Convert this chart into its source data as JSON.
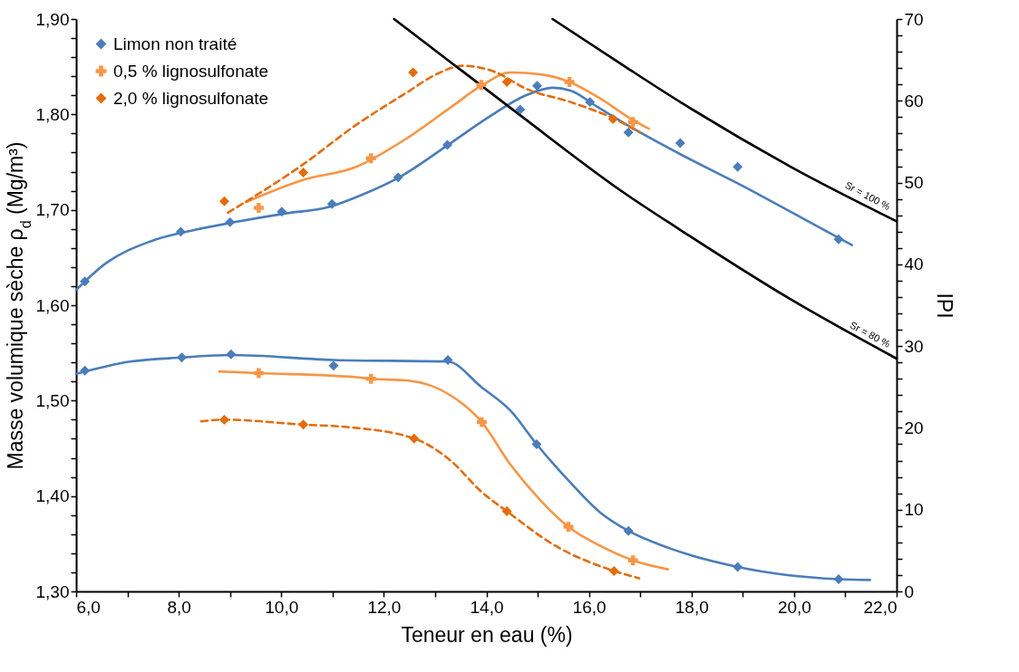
{
  "chart_data": {
    "type": "line",
    "xlabel": "Teneur en eau (%)",
    "ylabel": "Masse volumique sèche ρ$_{d}$ (Mg/m³)",
    "y2label": "IPI",
    "xlim": [
      6,
      22
    ],
    "xticks": [
      {
        "value": 6,
        "label": "6,0"
      },
      {
        "value": 7,
        "label": null
      },
      {
        "value": 8,
        "label": "8,0"
      },
      {
        "value": 9,
        "label": null
      },
      {
        "value": 10,
        "label": "10,0"
      },
      {
        "value": 11,
        "label": null
      },
      {
        "value": 12,
        "label": "12,0"
      },
      {
        "value": 13,
        "label": null
      },
      {
        "value": 14,
        "label": "14,0"
      },
      {
        "value": 15,
        "label": null
      },
      {
        "value": 16,
        "label": "16,0"
      },
      {
        "value": 17,
        "label": null
      },
      {
        "value": 18,
        "label": "18,0"
      },
      {
        "value": 19,
        "label": null
      },
      {
        "value": 20,
        "label": "20,0"
      },
      {
        "value": 21,
        "label": null
      },
      {
        "value": 22,
        "label": "22,0"
      }
    ],
    "ylim": [
      1.3,
      1.9
    ],
    "yticks": [
      {
        "value": 1.3,
        "label": "1,30"
      },
      {
        "value": 1.32,
        "label": null
      },
      {
        "value": 1.34,
        "label": null
      },
      {
        "value": 1.36,
        "label": null
      },
      {
        "value": 1.38,
        "label": null
      },
      {
        "value": 1.4,
        "label": "1,40"
      },
      {
        "value": 1.42,
        "label": null
      },
      {
        "value": 1.44,
        "label": null
      },
      {
        "value": 1.46,
        "label": null
      },
      {
        "value": 1.48,
        "label": null
      },
      {
        "value": 1.5,
        "label": "1,50"
      },
      {
        "value": 1.52,
        "label": null
      },
      {
        "value": 1.54,
        "label": null
      },
      {
        "value": 1.56,
        "label": null
      },
      {
        "value": 1.58,
        "label": null
      },
      {
        "value": 1.6,
        "label": "1,60"
      },
      {
        "value": 1.62,
        "label": null
      },
      {
        "value": 1.64,
        "label": null
      },
      {
        "value": 1.66,
        "label": null
      },
      {
        "value": 1.68,
        "label": null
      },
      {
        "value": 1.7,
        "label": "1,70"
      },
      {
        "value": 1.72,
        "label": null
      },
      {
        "value": 1.74,
        "label": null
      },
      {
        "value": 1.76,
        "label": null
      },
      {
        "value": 1.78,
        "label": null
      },
      {
        "value": 1.8,
        "label": "1,80"
      },
      {
        "value": 1.82,
        "label": null
      },
      {
        "value": 1.84,
        "label": null
      },
      {
        "value": 1.86,
        "label": null
      },
      {
        "value": 1.88,
        "label": null
      },
      {
        "value": 1.9,
        "label": "1,90"
      }
    ],
    "y2lim": [
      0,
      70
    ],
    "y2ticks": [
      0,
      {
        "value": 2,
        "label": null
      },
      {
        "value": 4,
        "label": null
      },
      {
        "value": 6,
        "label": null
      },
      {
        "value": 8,
        "label": null
      },
      10,
      {
        "value": 12,
        "label": null
      },
      {
        "value": 14,
        "label": null
      },
      {
        "value": 16,
        "label": null
      },
      {
        "value": 18,
        "label": null
      },
      20,
      {
        "value": 22,
        "label": null
      },
      {
        "value": 24,
        "label": null
      },
      {
        "value": 26,
        "label": null
      },
      {
        "value": 28,
        "label": null
      },
      30,
      {
        "value": 32,
        "label": null
      },
      {
        "value": 34,
        "label": null
      },
      {
        "value": 36,
        "label": null
      },
      {
        "value": 38,
        "label": null
      },
      40,
      {
        "value": 42,
        "label": null
      },
      {
        "value": 44,
        "label": null
      },
      {
        "value": 46,
        "label": null
      },
      {
        "value": 48,
        "label": null
      },
      50,
      {
        "value": 52,
        "label": null
      },
      {
        "value": 54,
        "label": null
      },
      {
        "value": 56,
        "label": null
      },
      {
        "value": 58,
        "label": null
      },
      60,
      {
        "value": 62,
        "label": null
      },
      {
        "value": 64,
        "label": null
      },
      {
        "value": 66,
        "label": null
      },
      {
        "value": 68,
        "label": null
      },
      70
    ],
    "legend": "top left",
    "series": [
      {
        "name": "Limon non traité",
        "type": "scatter",
        "marker": "diamond",
        "color": "#4a7dba",
        "x": [
          6.17,
          8.04,
          9.0,
          10.01,
          10.99,
          12.28,
          13.24,
          14.66,
          14.99,
          16.02,
          16.77,
          17.78,
          18.9,
          20.87
        ],
        "values": [
          1.625,
          1.677,
          1.687,
          1.698,
          1.706,
          1.734,
          1.768,
          1.805,
          1.83,
          1.813,
          1.781,
          1.77,
          1.745,
          1.669
        ]
      },
      {
        "name": "0,5 % lignosulfonate",
        "type": "scatter",
        "marker": "cross",
        "color": "#f79646",
        "x": [
          9.56,
          11.75,
          13.9,
          15.62,
          16.86
        ],
        "values": [
          1.702,
          1.754,
          1.831,
          1.834,
          1.792
        ]
      },
      {
        "name": "2,0 % lignosulfonate",
        "type": "scatter",
        "marker": "diamond",
        "color": "#e46c0a",
        "x": [
          8.89,
          10.43,
          12.57,
          14.4,
          16.47
        ],
        "values": [
          1.709,
          1.739,
          1.844,
          1.834,
          1.795
        ]
      },
      {
        "type": "line",
        "color": "#4a7dba",
        "line_style": "solid",
        "x": [
          6.0,
          6.58,
          7.45,
          8.32,
          9.19,
          10.06,
          10.93,
          11.63,
          12.33,
          13.2,
          14.07,
          14.77,
          15.29,
          15.64,
          16.16,
          16.68,
          17.9,
          19.0,
          20.17,
          21.13
        ],
        "values": [
          1.616,
          1.644,
          1.667,
          1.679,
          1.688,
          1.696,
          1.703,
          1.717,
          1.735,
          1.766,
          1.798,
          1.82,
          1.828,
          1.825,
          1.808,
          1.791,
          1.755,
          1.725,
          1.691,
          1.663
        ]
      },
      {
        "type": "line",
        "color": "#f79646",
        "line_style": "solid",
        "x": [
          9.31,
          10.41,
          11.46,
          12.45,
          13.32,
          13.9,
          14.47,
          15.06,
          15.62,
          16.21,
          16.86,
          17.17
        ],
        "values": [
          1.708,
          1.731,
          1.745,
          1.775,
          1.808,
          1.83,
          1.844,
          1.842,
          1.834,
          1.817,
          1.794,
          1.785
        ]
      },
      {
        "type": "line",
        "color": "#e46c0a",
        "line_style": "dashed",
        "x": [
          8.96,
          10.41,
          11.46,
          12.45,
          13.02,
          13.55,
          14.19,
          14.77,
          15.64,
          16.51,
          17.0
        ],
        "values": [
          1.697,
          1.747,
          1.789,
          1.823,
          1.842,
          1.851,
          1.844,
          1.827,
          1.813,
          1.795,
          1.781
        ]
      },
      {
        "name": "Sr = 100 %",
        "type": "line",
        "color": "#000000",
        "line_style": "solid",
        "x": [
          15.29,
          16.68,
          17.78,
          19.94,
          22.0
        ],
        "values": [
          1.9,
          1.851,
          1.813,
          1.745,
          1.688
        ]
      },
      {
        "name": "Sr = 80 %",
        "type": "line",
        "color": "#000000",
        "line_style": "solid",
        "x": [
          12.2,
          14.54,
          16.68,
          17.78,
          19.94,
          22.0
        ],
        "values": [
          1.9,
          1.804,
          1.718,
          1.679,
          1.606,
          1.544
        ]
      },
      {
        "type": "scatter",
        "axis": "y2",
        "marker": "diamond",
        "color": "#4a7dba",
        "x": [
          6.17,
          8.06,
          9.02,
          11.02,
          13.25,
          14.98,
          16.77,
          18.9,
          20.87
        ],
        "values": [
          27.0,
          28.6,
          29.0,
          27.6,
          28.3,
          18.0,
          7.4,
          3.0,
          1.5
        ]
      },
      {
        "type": "scatter",
        "axis": "y2",
        "marker": "cross",
        "color": "#f79646",
        "x": [
          9.56,
          11.75,
          13.91,
          15.6,
          16.86
        ],
        "values": [
          26.7,
          26.0,
          20.7,
          7.9,
          3.8
        ]
      },
      {
        "type": "scatter",
        "axis": "y2",
        "marker": "diamond",
        "color": "#e46c0a",
        "x": [
          8.89,
          10.43,
          12.59,
          14.4,
          16.49
        ],
        "values": [
          21.0,
          20.4,
          18.7,
          9.8,
          2.5
        ]
      },
      {
        "type": "line",
        "axis": "y2",
        "color": "#4a7dba",
        "line_style": "solid",
        "x": [
          6.0,
          7.05,
          8.06,
          9.02,
          11.02,
          13.25,
          13.9,
          14.47,
          14.98,
          15.64,
          16.21,
          16.77,
          17.56,
          18.9,
          20.87,
          21.48
        ],
        "values": [
          26.6,
          28.1,
          28.6,
          28.9,
          28.3,
          28.1,
          25.0,
          22.1,
          18.0,
          13.3,
          9.7,
          7.4,
          5.3,
          3.0,
          1.5,
          1.4
        ]
      },
      {
        "type": "line",
        "axis": "y2",
        "color": "#f79646",
        "line_style": "solid",
        "x": [
          8.79,
          9.56,
          11.46,
          11.75,
          12.45,
          13.32,
          13.91,
          14.47,
          15.06,
          15.6,
          16.21,
          16.86,
          17.54
        ],
        "values": [
          26.9,
          26.7,
          26.2,
          26.0,
          25.8,
          23.9,
          20.7,
          15.5,
          11.1,
          7.9,
          5.6,
          3.8,
          2.7
        ]
      },
      {
        "type": "line",
        "axis": "y2",
        "color": "#e46c0a",
        "line_style": "dashed",
        "x": [
          8.44,
          8.89,
          10.43,
          11.28,
          12.59,
          13.32,
          13.9,
          14.4,
          15.34,
          16.49,
          16.98
        ],
        "values": [
          20.8,
          21.0,
          20.4,
          20.1,
          18.7,
          15.9,
          12.2,
          9.8,
          5.6,
          2.5,
          1.6
        ]
      }
    ]
  }
}
